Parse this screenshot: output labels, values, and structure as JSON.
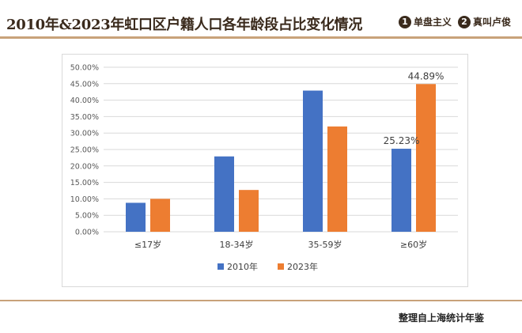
{
  "header": {
    "title": "2010年&2023年虹口区户籍人口各年龄段占比变化情况",
    "logos": [
      {
        "badge": "1",
        "text": "单盘主义",
        "icon": "badge-one-icon"
      },
      {
        "badge": "2",
        "text": "真叫卢俊",
        "icon": "badge-two-icon"
      }
    ]
  },
  "footer": {
    "source": "整理自上海统计年鉴"
  },
  "colors": {
    "accent": "#c8a27a",
    "series_2010": "#4472c4",
    "series_2023": "#ed7d31"
  },
  "chart_data": {
    "type": "bar",
    "categories": [
      "≤17岁",
      "18-34岁",
      "35-59岁",
      "≥60岁"
    ],
    "series": [
      {
        "name": "2010年",
        "values": [
          8.8,
          22.9,
          42.9,
          25.23
        ],
        "color": "#4472c4"
      },
      {
        "name": "2023年",
        "values": [
          10.0,
          12.7,
          32.0,
          44.89
        ],
        "color": "#ed7d31"
      }
    ],
    "y_ticks": [
      "0.00%",
      "5.00%",
      "10.00%",
      "15.00%",
      "20.00%",
      "25.00%",
      "30.00%",
      "35.00%",
      "40.00%",
      "45.00%",
      "50.00%"
    ],
    "ylim": [
      0,
      50
    ],
    "y_tick_step": 5,
    "data_labels": [
      {
        "series": 0,
        "category": 3,
        "text": "25.23%"
      },
      {
        "series": 1,
        "category": 3,
        "text": "44.89%"
      }
    ],
    "grid": true,
    "legend_position": "bottom"
  }
}
